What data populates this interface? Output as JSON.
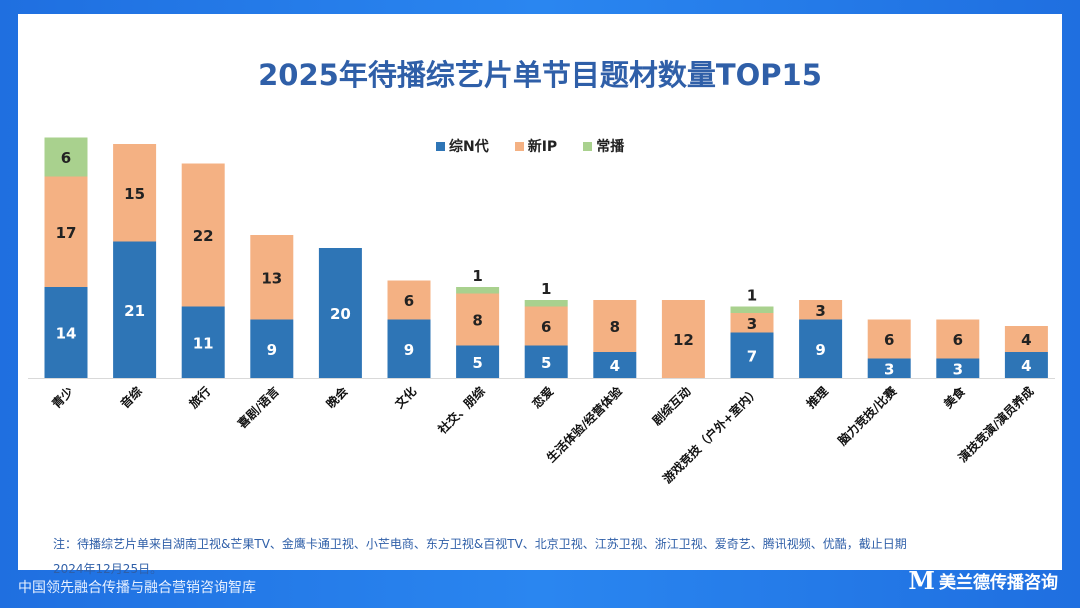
{
  "chart_data": {
    "type": "bar",
    "stacked": true,
    "title": "2025年待播综艺片单节目题材数量TOP15",
    "categories": [
      "青少",
      "音综",
      "旅行",
      "喜剧/语言",
      "晚会",
      "文化",
      "社交、朋综",
      "恋爱",
      "生活体验/经营体验",
      "剧综互动",
      "游戏竞技（户外+室内）",
      "推理",
      "脑力竞技/比赛",
      "美食",
      "演技竞演/演员养成"
    ],
    "series": [
      {
        "name": "综N代",
        "color": "#2e75b6",
        "values": [
          14,
          21,
          11,
          9,
          20,
          9,
          5,
          5,
          4,
          0,
          7,
          9,
          3,
          3,
          4
        ]
      },
      {
        "name": "新IP",
        "color": "#f4b183",
        "values": [
          17,
          15,
          22,
          13,
          0,
          6,
          8,
          6,
          8,
          12,
          3,
          3,
          6,
          6,
          4
        ]
      },
      {
        "name": "常播",
        "color": "#a9d18e",
        "values": [
          6,
          0,
          0,
          0,
          0,
          0,
          1,
          1,
          0,
          0,
          1,
          0,
          0,
          0,
          0
        ]
      }
    ],
    "legend_position": "top",
    "grid": false,
    "y_axis_visible": false
  },
  "note": {
    "line1": "注：待播综艺片单来自湖南卫视&芒果TV、金鹰卡通卫视、小芒电商、东方卫视&百视TV、北京卫视、江苏卫视、浙江卫视、爱奇艺、腾讯视频、优酷，截止日期",
    "line2": "2024年12月25日。"
  },
  "footer": {
    "slogan": "中国领先融合传播与融合营销咨询智库",
    "brand": "美兰德传播咨询",
    "brand_logo_letter": "M"
  }
}
